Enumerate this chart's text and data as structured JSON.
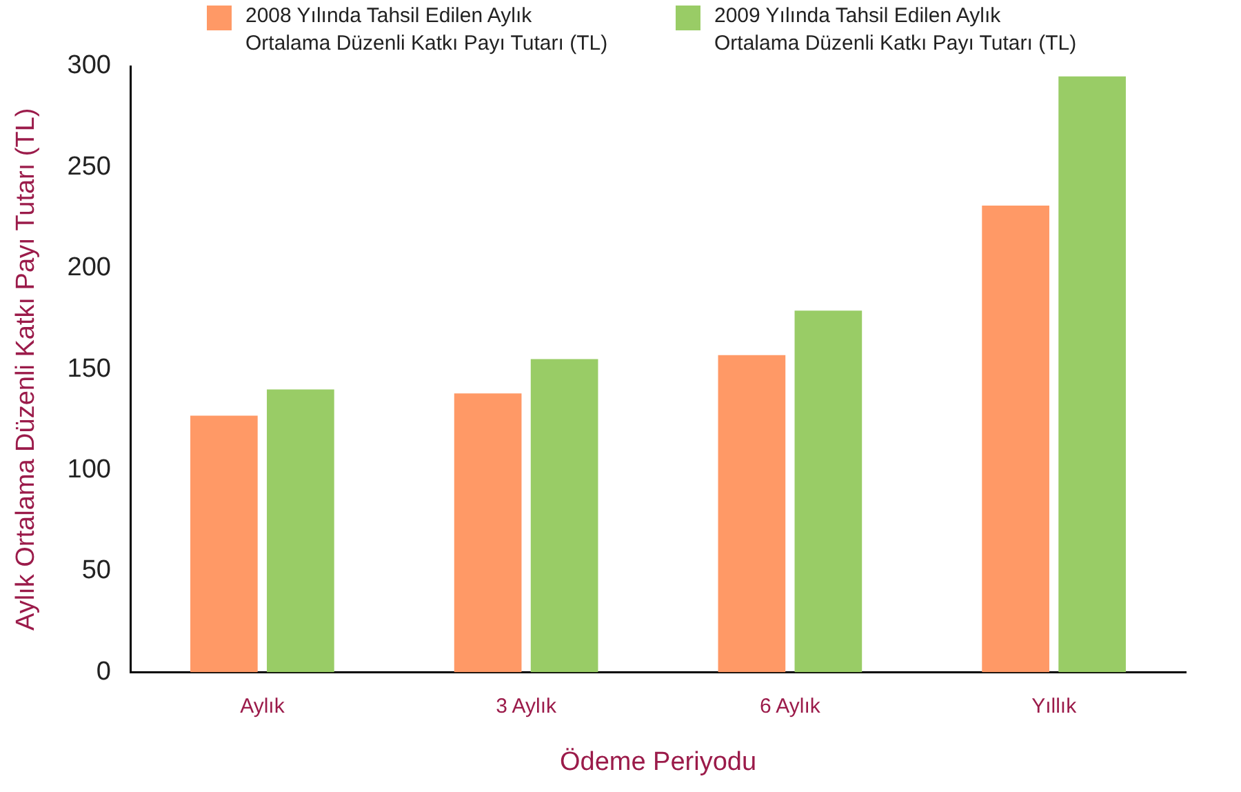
{
  "chart_data": {
    "type": "bar",
    "xlabel": "Ödeme Periyodu",
    "ylabel": "Aylık Ortalama Düzenli Katkı Payı Tutarı (TL)",
    "categories": [
      "Aylık",
      "3 Aylık",
      "6 Aylık",
      "Yıllık"
    ],
    "series": [
      {
        "name": "2008 Yılında Tahsil Edilen Aylık Ortalama Düzenli Katkı Payı Tutarı (TL)",
        "color": "#ff9966",
        "values": [
          127,
          138,
          157,
          231
        ]
      },
      {
        "name": "2009 Yılında Tahsil Edilen Aylık Ortalama Düzenli Katkı Payı Tutarı (TL)",
        "color": "#99cc66",
        "values": [
          140,
          155,
          179,
          295
        ]
      }
    ],
    "ylim": [
      0,
      300
    ],
    "yticks": [
      0,
      50,
      100,
      150,
      200,
      250,
      300
    ],
    "grid": false,
    "legend": "top"
  }
}
